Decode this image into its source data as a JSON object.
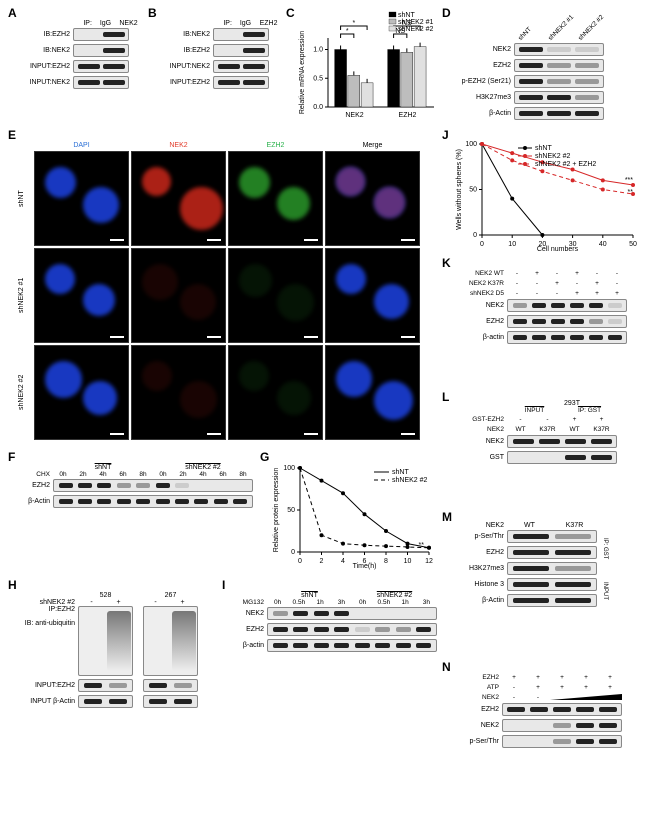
{
  "labels": {
    "A": "A",
    "B": "B",
    "C": "C",
    "D": "D",
    "E": "E",
    "F": "F",
    "G": "G",
    "H": "H",
    "I": "I",
    "J": "J",
    "K": "K",
    "L": "L",
    "M": "M",
    "N": "N"
  },
  "panelA": {
    "cols": [
      "IgG",
      "NEK2"
    ],
    "ip_label": "IP:",
    "rows": [
      "IB:EZH2",
      "IB:NEK2",
      "INPUT:EZH2",
      "INPUT:NEK2"
    ]
  },
  "panelB": {
    "cols": [
      "IgG",
      "EZH2"
    ],
    "ip_label": "IP:",
    "rows": [
      "IB:NEK2",
      "IB:EZH2",
      "INPUT:NEK2",
      "INPUT:EZH2"
    ]
  },
  "panelC": {
    "ylabel": "Relative\nmRNA expression",
    "ymax": 1.2,
    "ytick_step": 0.5,
    "groups": [
      "NEK2",
      "EZH2"
    ],
    "series": [
      {
        "name": "shNT",
        "color": "#000000",
        "values": [
          1.0,
          1.0
        ]
      },
      {
        "name": "shNEK2 #1",
        "color": "#bdbdbd",
        "values": [
          0.55,
          0.95
        ]
      },
      {
        "name": "shNEK2 #2",
        "color": "#e0e0e0",
        "values": [
          0.42,
          1.05
        ]
      }
    ],
    "sig": [
      {
        "from": 0,
        "to": 1,
        "group": 0,
        "label": "*"
      },
      {
        "from": 0,
        "to": 2,
        "group": 0,
        "label": "*"
      },
      {
        "from": 0,
        "to": 1,
        "group": 1,
        "label": "NS"
      },
      {
        "from": 0,
        "to": 2,
        "group": 1,
        "label": "NS"
      }
    ]
  },
  "panelD": {
    "cols": [
      "shNT",
      "shNEK2 #1",
      "shNEK2 #2"
    ],
    "rows": [
      "NEK2",
      "EZH2",
      "p-EZH2 (Ser21)",
      "H3K27me3",
      "β-Actin"
    ]
  },
  "panelE": {
    "col_labels": [
      "DAPI",
      "NEK2",
      "EZH2",
      "Merge"
    ],
    "col_colors": [
      "#2a6fd6",
      "#e23b2a",
      "#2bb24c",
      "#333333"
    ],
    "row_labels": [
      "shNT",
      "shNEK2 #1",
      "shNEK2 #2"
    ],
    "dapi_color": "#1b3fd6",
    "nek2_color": "#c9271a",
    "ezh2_color": "#2ca02c",
    "scalebar_label": ""
  },
  "panelF": {
    "header": "CHX",
    "groups": [
      "shNT",
      "shNEK2 #2"
    ],
    "times": [
      "0h",
      "2h",
      "4h",
      "6h",
      "8h",
      "0h",
      "2h",
      "4h",
      "6h",
      "8h"
    ],
    "rows": [
      "EZH2",
      "β-Actin"
    ]
  },
  "panelG": {
    "ylabel": "Relative\nprotein expression",
    "xlabel": "Time(h)",
    "xmax": 12,
    "xtick_step": 2,
    "ymax": 100,
    "ytick_step": 50,
    "series": [
      {
        "name": "shNT",
        "color": "#000000",
        "dash": "0",
        "points": [
          [
            0,
            100
          ],
          [
            2,
            85
          ],
          [
            4,
            70
          ],
          [
            6,
            45
          ],
          [
            8,
            25
          ],
          [
            10,
            10
          ],
          [
            12,
            5
          ]
        ]
      },
      {
        "name": "shNEK2 #2",
        "color": "#000000",
        "dash": "4 3",
        "points": [
          [
            0,
            100
          ],
          [
            2,
            20
          ],
          [
            4,
            10
          ],
          [
            6,
            8
          ],
          [
            8,
            7
          ],
          [
            10,
            6
          ],
          [
            12,
            5
          ]
        ]
      }
    ],
    "sig": "**"
  },
  "panelH": {
    "cells": [
      "528",
      "267"
    ],
    "cond_label": "shNEK2 #2",
    "cond": [
      "-",
      "+"
    ],
    "rows": [
      "IP:EZH2",
      "IB: anti-ubiquitin",
      "INPUT:EZH2",
      "INPUT β-Actin"
    ]
  },
  "panelI": {
    "header": "MG132",
    "groups": [
      "shNT",
      "shNEK2 #2"
    ],
    "times": [
      "0h",
      "0.5h",
      "1h",
      "3h",
      "0h",
      "0.5h",
      "1h",
      "3h"
    ],
    "rows": [
      "NEK2",
      "EZH2",
      "β-actin"
    ]
  },
  "panelJ": {
    "ylabel": "Wells without\nspheres (%)",
    "xlabel": "Cell numbers",
    "xmax": 50,
    "xtick_step": 10,
    "ymax": 100,
    "ytick_step": 50,
    "series": [
      {
        "name": "shNT",
        "color": "#000000",
        "dash": "0",
        "points": [
          [
            0,
            100
          ],
          [
            10,
            40
          ],
          [
            20,
            0
          ]
        ]
      },
      {
        "name": "shNEK2 #2",
        "color": "#d62728",
        "dash": "0",
        "points": [
          [
            0,
            100
          ],
          [
            10,
            90
          ],
          [
            20,
            80
          ],
          [
            30,
            72
          ],
          [
            40,
            60
          ],
          [
            50,
            55
          ]
        ]
      },
      {
        "name": "shNEK2 #2 + EZH2",
        "color": "#d62728",
        "dash": "4 3",
        "points": [
          [
            0,
            100
          ],
          [
            10,
            82
          ],
          [
            20,
            70
          ],
          [
            30,
            60
          ],
          [
            40,
            50
          ],
          [
            50,
            45
          ]
        ]
      }
    ],
    "sig": [
      "***",
      "**"
    ]
  },
  "panelK": {
    "conds": [
      {
        "label": "NEK2 WT",
        "vals": [
          "-",
          "+",
          "-",
          "+",
          "-",
          "-"
        ]
      },
      {
        "label": "NEK2 K37R",
        "vals": [
          "-",
          "-",
          "+",
          "-",
          "+",
          "-"
        ]
      },
      {
        "label": "shNEK2 D5",
        "vals": [
          "-",
          "-",
          "-",
          "+",
          "+",
          "+"
        ]
      }
    ],
    "rows": [
      "NEK2",
      "EZH2",
      "β-actin"
    ]
  },
  "panelL": {
    "header": "293T",
    "group_labels": [
      "INPUT",
      "IP: GST"
    ],
    "conds": [
      {
        "label": "GST-EZH2",
        "vals": [
          "-",
          "-",
          "+",
          "+"
        ]
      },
      {
        "label": "NEK2",
        "vals": [
          "WT",
          "K37R",
          "WT",
          "K37R"
        ]
      }
    ],
    "rows": [
      "NEK2",
      "GST"
    ]
  },
  "panelM": {
    "header": "NEK2",
    "cols": [
      "WT",
      "K37R"
    ],
    "ip_label": "IP: GST",
    "input_label": "INPUT",
    "rows": [
      "p-Ser/Thr",
      "EZH2",
      "H3K27me3",
      "Histone 3",
      "β-Actin"
    ]
  },
  "panelN": {
    "conds": [
      {
        "label": "EZH2",
        "vals": [
          "+",
          "+",
          "+",
          "+",
          "+"
        ]
      },
      {
        "label": "ATP",
        "vals": [
          "-",
          "+",
          "+",
          "+",
          "+"
        ]
      },
      {
        "label": "NEK2",
        "vals": [
          "-",
          "-",
          "",
          "",
          ""
        ]
      }
    ],
    "wedge": true,
    "rows": [
      "EZH2",
      "NEK2",
      "p-Ser/Thr"
    ]
  },
  "colors": {
    "blot_bg": "#e8e8e8",
    "blot_border": "#888888",
    "band_dark": "#222222",
    "band_faint": "#999999"
  }
}
